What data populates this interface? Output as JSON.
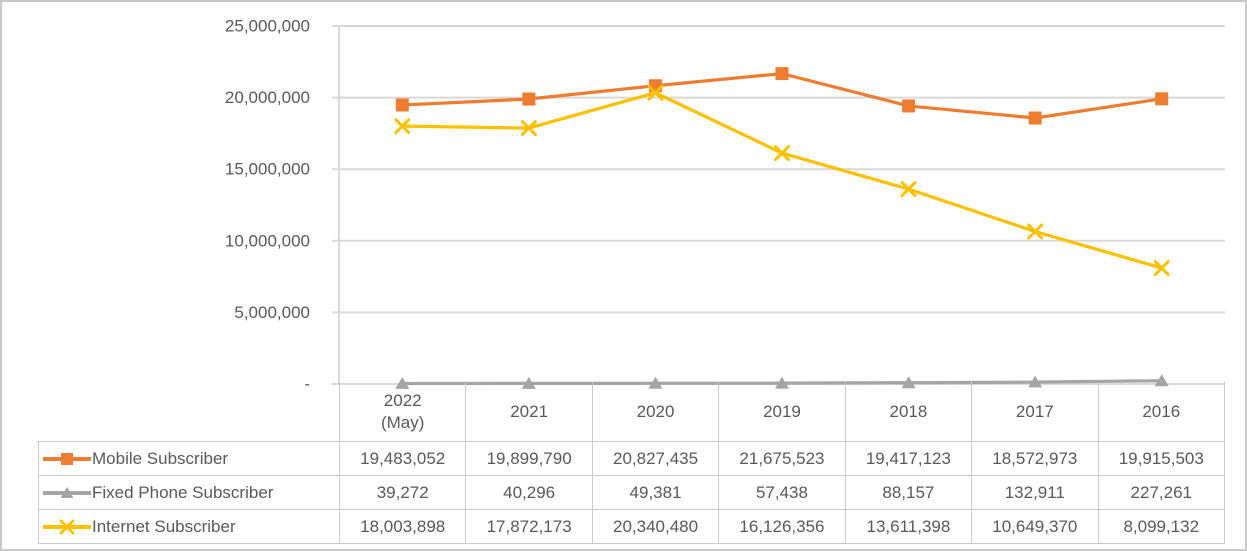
{
  "colors": {
    "text": "#595959",
    "gridline": "#d9d9d9",
    "axis": "#d9d9d9",
    "table_border": "#c9c9c9",
    "outer_frame": "#c8c8c8",
    "background": "#ffffff"
  },
  "chart_data": {
    "type": "line",
    "title": "",
    "xlabel": "",
    "ylabel": "",
    "grid": true,
    "legend_position": "table-left",
    "ylim": [
      0,
      25000000
    ],
    "y_ticks": [
      {
        "value": 25000000,
        "label": "25,000,000"
      },
      {
        "value": 20000000,
        "label": "20,000,000"
      },
      {
        "value": 15000000,
        "label": "15,000,000"
      },
      {
        "value": 10000000,
        "label": "10,000,000"
      },
      {
        "value": 5000000,
        "label": "5,000,000"
      },
      {
        "value": 0,
        "label": "-"
      }
    ],
    "categories": [
      "2022 (May)",
      "2021",
      "2020",
      "2019",
      "2018",
      "2017",
      "2016"
    ],
    "series": [
      {
        "name": "Mobile Subscriber",
        "color": "#ed7d31",
        "marker": "square",
        "icon": "mobile-series-key-icon",
        "values": [
          19483052,
          19899790,
          20827435,
          21675523,
          19417123,
          18572973,
          19915503
        ],
        "values_formatted": [
          "19,483,052",
          "19,899,790",
          "20,827,435",
          "21,675,523",
          "19,417,123",
          "18,572,973",
          "19,915,503"
        ]
      },
      {
        "name": "Fixed Phone Subscriber",
        "color": "#a5a5a5",
        "marker": "triangle",
        "icon": "fixed-phone-series-key-icon",
        "values": [
          39272,
          40296,
          49381,
          57438,
          88157,
          132911,
          227261
        ],
        "values_formatted": [
          "39,272",
          "40,296",
          "49,381",
          "57,438",
          "88,157",
          "132,911",
          "227,261"
        ]
      },
      {
        "name": "Internet Subscriber",
        "color": "#ffc000",
        "marker": "x",
        "icon": "internet-series-key-icon",
        "values": [
          18003898,
          17872173,
          20340480,
          16126356,
          13611398,
          10649370,
          8099132
        ],
        "values_formatted": [
          "18,003,898",
          "17,872,173",
          "20,340,480",
          "16,126,356",
          "13,611,398",
          "10,649,370",
          "8,099,132"
        ]
      }
    ]
  }
}
